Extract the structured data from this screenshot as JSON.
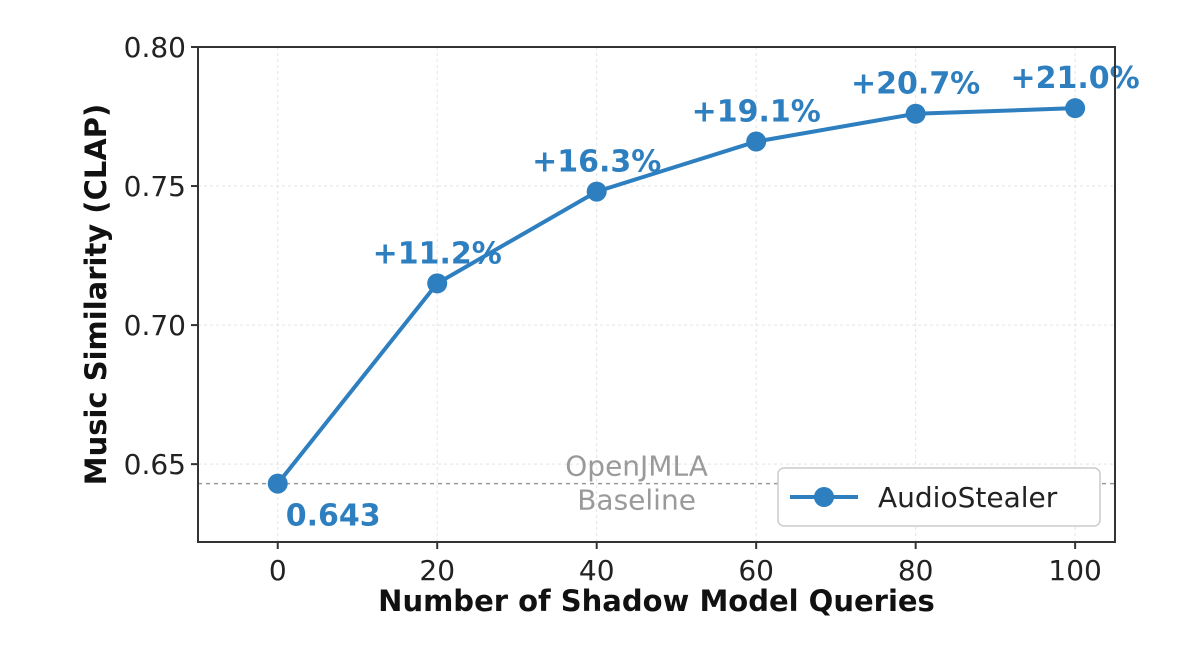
{
  "chart_data": {
    "type": "line",
    "xlabel": "Number of Shadow Model Queries",
    "ylabel": "Music Similarity (CLAP)",
    "x": [
      0,
      20,
      40,
      60,
      80,
      100
    ],
    "xticks": [
      "0",
      "20",
      "40",
      "60",
      "80",
      "100"
    ],
    "yticks": [
      "0.65",
      "0.70",
      "0.75",
      "0.80"
    ],
    "ylim": [
      0.622,
      0.8
    ],
    "xlim": [
      -10,
      105
    ],
    "grid": true,
    "legend": "lower-right",
    "series": [
      {
        "name": "AudioStealer",
        "color": "#2e7fc0",
        "values": [
          0.643,
          0.715,
          0.748,
          0.766,
          0.776,
          0.778
        ]
      }
    ],
    "annotations": [
      {
        "text": "0.643",
        "x": 0,
        "y": 0.643
      },
      {
        "text": "+11.2%",
        "x": 20,
        "y": 0.715
      },
      {
        "text": "+16.3%",
        "x": 40,
        "y": 0.748
      },
      {
        "text": "+19.1%",
        "x": 60,
        "y": 0.766
      },
      {
        "text": "+20.7%",
        "x": 80,
        "y": 0.776
      },
      {
        "text": "+21.0%",
        "x": 100,
        "y": 0.778
      }
    ],
    "baseline": {
      "value": 0.643,
      "label_line1": "OpenJMLA",
      "label_line2": "Baseline",
      "color": "#9a9a9a"
    }
  }
}
